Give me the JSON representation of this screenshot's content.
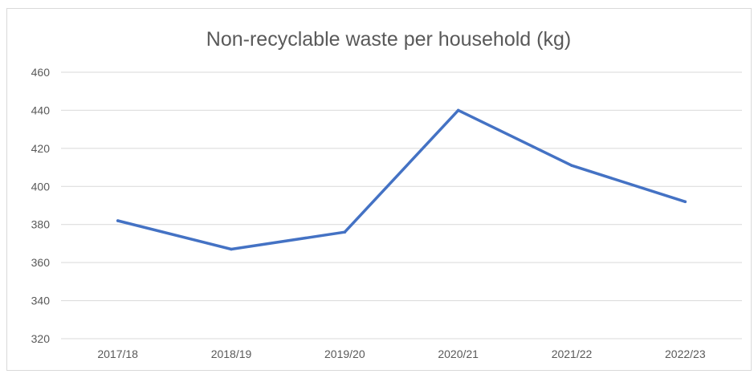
{
  "chart_data": {
    "type": "line",
    "title": "Non-recyclable waste per household (kg)",
    "xlabel": "",
    "ylabel": "",
    "categories": [
      "2017/18",
      "2018/19",
      "2019/20",
      "2020/21",
      "2021/22",
      "2022/23"
    ],
    "series": [
      {
        "values": [
          382,
          367,
          376,
          440,
          411,
          392
        ],
        "color": "#4472c4"
      }
    ],
    "ylim": [
      320,
      460
    ],
    "yticks": [
      "460",
      "440",
      "420",
      "400",
      "380",
      "360",
      "340",
      "320"
    ],
    "grid": true,
    "legend": "none"
  }
}
